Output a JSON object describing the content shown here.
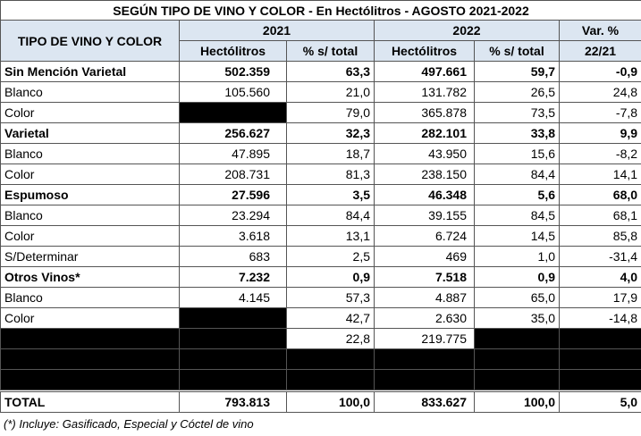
{
  "title": "SEGÚN TIPO DE VINO Y COLOR - En Hectólitros - AGOSTO 2021-2022",
  "table": {
    "header": {
      "row_label": "TIPO DE VINO Y COLOR",
      "year_2021": "2021",
      "year_2022": "2022",
      "var_top": "Var. %",
      "var_bottom": "22/21",
      "columns": [
        "Hectólitros",
        "% s/ total",
        "Hectólitros",
        "% s/ total"
      ]
    },
    "rows": [
      [
        "Sin Mención Varietal",
        "502.359",
        "63,3",
        "497.661",
        "59,7",
        "-0,9"
      ],
      [
        "Blanco",
        "105.560",
        "21,0",
        "131.782",
        "26,5",
        "24,8"
      ],
      [
        "Color",
        null,
        "79,0",
        "365.878",
        "73,5",
        "-7,8"
      ],
      [
        "Varietal",
        "256.627",
        "32,3",
        "282.101",
        "33,8",
        "9,9"
      ],
      [
        "Blanco",
        "47.895",
        "18,7",
        "43.950",
        "15,6",
        "-8,2"
      ],
      [
        "Color",
        "208.731",
        "81,3",
        "238.150",
        "84,4",
        "14,1"
      ],
      [
        "Espumoso",
        "27.596",
        "3,5",
        "46.348",
        "5,6",
        "68,0"
      ],
      [
        "Blanco",
        "23.294",
        "84,4",
        "39.155",
        "84,5",
        "68,1"
      ],
      [
        "Color",
        "3.618",
        "13,1",
        "6.724",
        "14,5",
        "85,8"
      ],
      [
        "S/Determinar",
        "683",
        "2,5",
        "469",
        "1,0",
        "-31,4"
      ],
      [
        "Otros Vinos*",
        "7.232",
        "0,9",
        "7.518",
        "0,9",
        "4,0"
      ],
      [
        "Blanco",
        "4.145",
        "57,3",
        "4.887",
        "65,0",
        "17,9"
      ],
      [
        "Color",
        null,
        "42,7",
        "2.630",
        "35,0",
        "-14,8"
      ],
      [
        null,
        null,
        "22,8",
        "219.775",
        null,
        null
      ],
      [
        null,
        null,
        null,
        null,
        null,
        null
      ],
      [
        null,
        null,
        null,
        null,
        null,
        null
      ]
    ],
    "total": [
      "TOTAL",
      "793.813",
      "100,0",
      "833.627",
      "100,0",
      "5,0"
    ]
  },
  "footnote": "(*) Incluye: Gasificado, Especial y Cóctel de vino"
}
